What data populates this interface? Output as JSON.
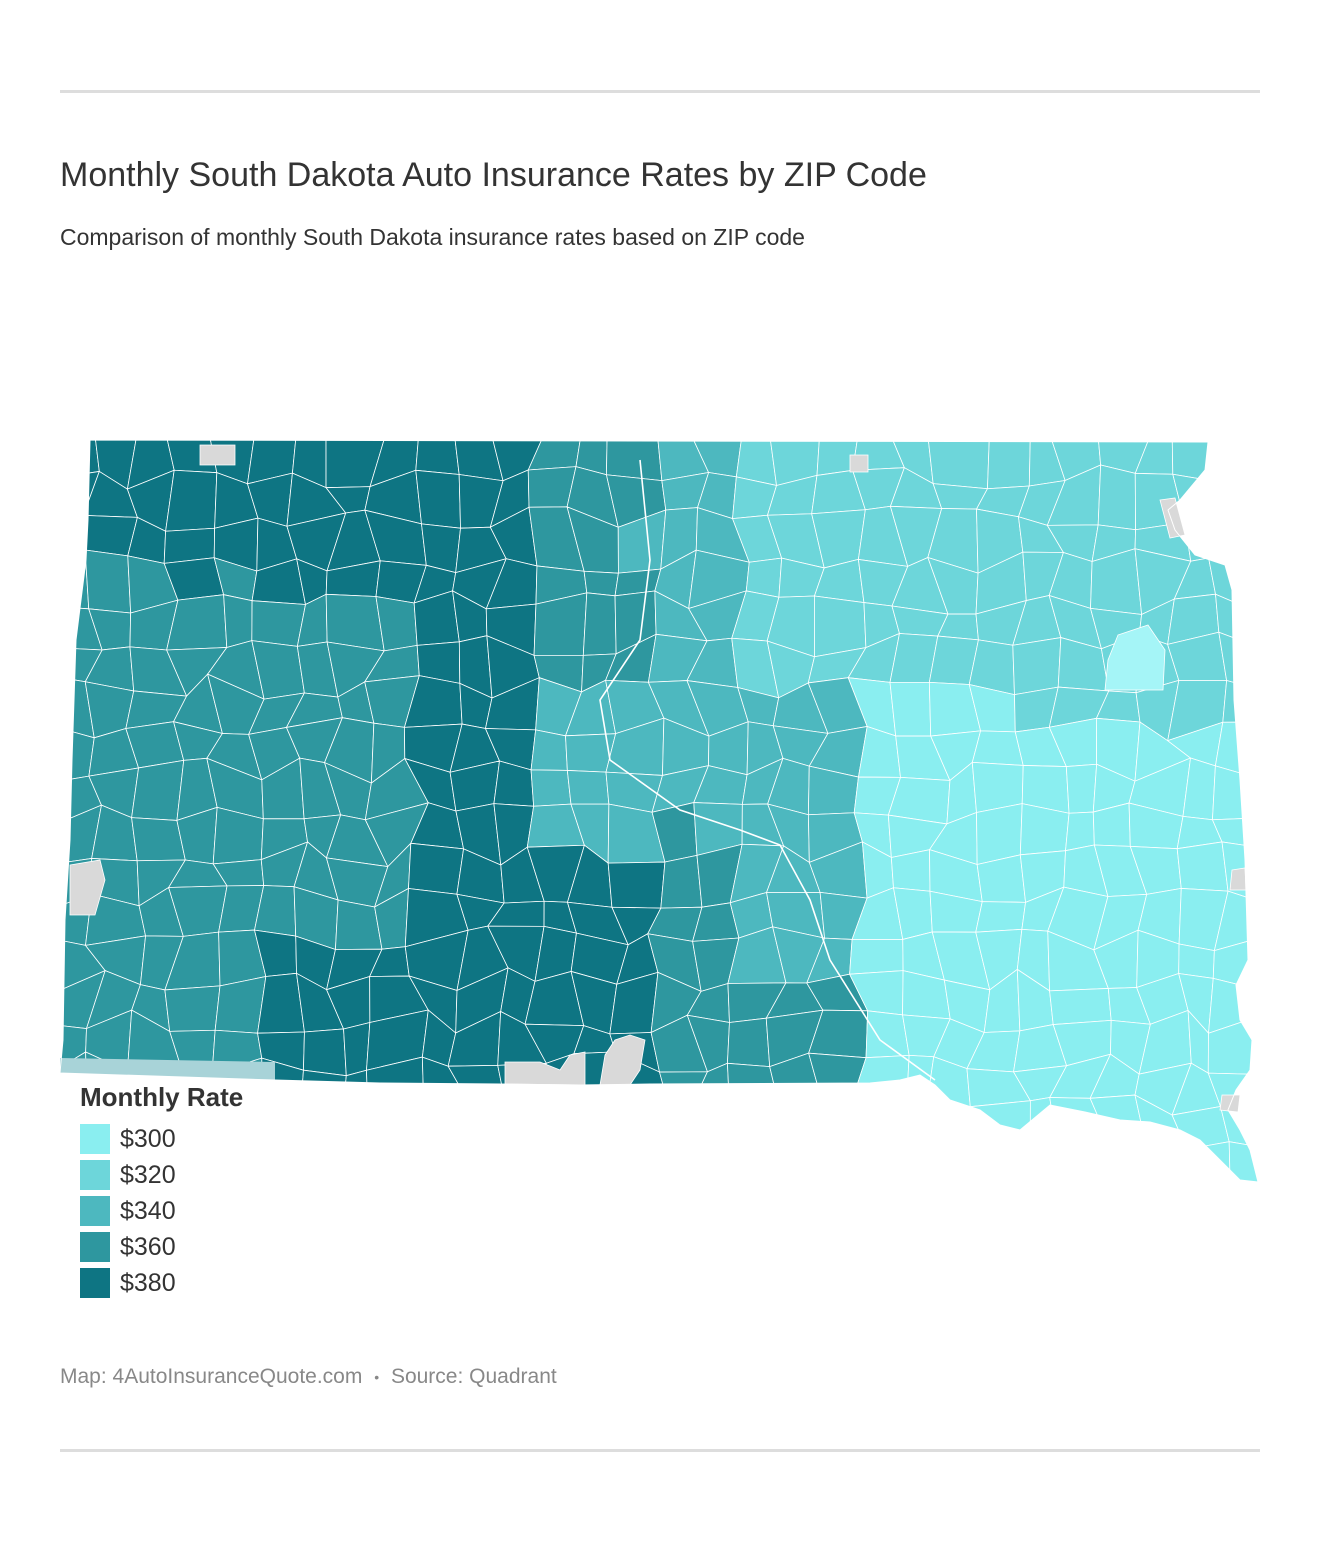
{
  "header": {
    "title": "Monthly South Dakota Auto Insurance Rates by ZIP Code",
    "subtitle": "Comparison of monthly South Dakota insurance rates based on ZIP code"
  },
  "map": {
    "region": "South Dakota",
    "no_data_color": "#d9d9d9",
    "outside_color": "#a8d3d8",
    "colors": {
      "300": "#8aeef0",
      "300_light": "#a5f5f7",
      "320": "#6dd6da",
      "340": "#4db8bf",
      "360": "#2e979f",
      "380": "#0e7583"
    }
  },
  "legend": {
    "title": "Monthly Rate",
    "items": [
      {
        "label": "$300",
        "color": "#8aeef0"
      },
      {
        "label": "$320",
        "color": "#6dd6da"
      },
      {
        "label": "$340",
        "color": "#4db8bf"
      },
      {
        "label": "$360",
        "color": "#2e979f"
      },
      {
        "label": "$380",
        "color": "#0e7583"
      }
    ]
  },
  "footer": {
    "map_credit": "Map: 4AutoInsuranceQuote.com",
    "separator": "•",
    "source": "Source: Quadrant"
  }
}
